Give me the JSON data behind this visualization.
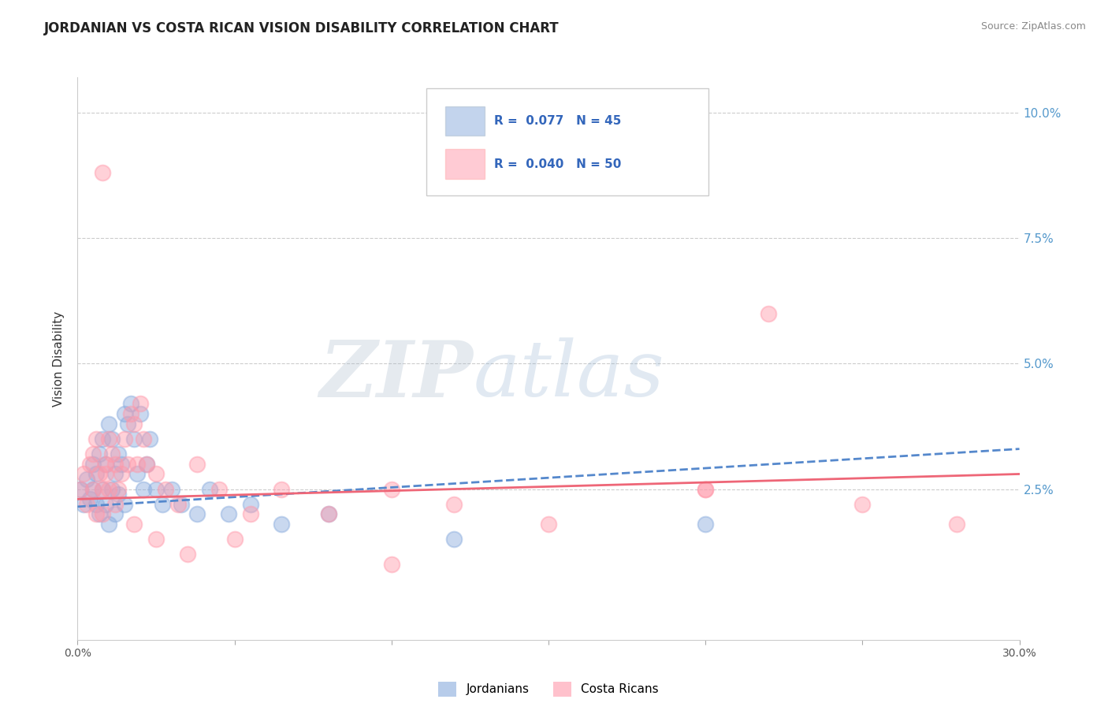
{
  "title": "JORDANIAN VS COSTA RICAN VISION DISABILITY CORRELATION CHART",
  "source": "Source: ZipAtlas.com",
  "ylabel": "Vision Disability",
  "xlim": [
    0.0,
    0.3
  ],
  "ylim": [
    -0.005,
    0.107
  ],
  "xticks": [
    0.0,
    0.05,
    0.1,
    0.15,
    0.2,
    0.25,
    0.3
  ],
  "xticklabels": [
    "0.0%",
    "",
    "",
    "",
    "",
    "",
    "30.0%"
  ],
  "yticks": [
    0.025,
    0.05,
    0.075,
    0.1
  ],
  "yticklabels": [
    "2.5%",
    "5.0%",
    "7.5%",
    "10.0%"
  ],
  "blue_color": "#88AADD",
  "pink_color": "#FF99AA",
  "blue_label": "Jordanians",
  "pink_label": "Costa Ricans",
  "watermark_zip": "ZIP",
  "watermark_atlas": "atlas",
  "background_color": "#ffffff",
  "grid_color": "#cccccc",
  "blue_scatter_x": [
    0.001,
    0.002,
    0.003,
    0.004,
    0.005,
    0.005,
    0.006,
    0.006,
    0.007,
    0.007,
    0.008,
    0.008,
    0.009,
    0.009,
    0.01,
    0.01,
    0.011,
    0.011,
    0.012,
    0.012,
    0.013,
    0.013,
    0.014,
    0.015,
    0.015,
    0.016,
    0.017,
    0.018,
    0.019,
    0.02,
    0.021,
    0.022,
    0.023,
    0.025,
    0.027,
    0.03,
    0.033,
    0.038,
    0.042,
    0.048,
    0.055,
    0.065,
    0.08,
    0.12,
    0.2
  ],
  "blue_scatter_y": [
    0.025,
    0.022,
    0.027,
    0.023,
    0.025,
    0.03,
    0.028,
    0.022,
    0.032,
    0.02,
    0.035,
    0.025,
    0.03,
    0.022,
    0.038,
    0.018,
    0.035,
    0.025,
    0.028,
    0.02,
    0.032,
    0.024,
    0.03,
    0.04,
    0.022,
    0.038,
    0.042,
    0.035,
    0.028,
    0.04,
    0.025,
    0.03,
    0.035,
    0.025,
    0.022,
    0.025,
    0.022,
    0.02,
    0.025,
    0.02,
    0.022,
    0.018,
    0.02,
    0.015,
    0.018
  ],
  "pink_scatter_x": [
    0.001,
    0.002,
    0.003,
    0.004,
    0.005,
    0.005,
    0.006,
    0.007,
    0.008,
    0.008,
    0.009,
    0.01,
    0.01,
    0.011,
    0.012,
    0.013,
    0.014,
    0.015,
    0.016,
    0.017,
    0.018,
    0.019,
    0.02,
    0.021,
    0.022,
    0.025,
    0.028,
    0.032,
    0.038,
    0.045,
    0.055,
    0.065,
    0.08,
    0.1,
    0.12,
    0.15,
    0.2,
    0.22,
    0.25,
    0.28,
    0.006,
    0.009,
    0.012,
    0.018,
    0.025,
    0.035,
    0.05,
    0.1,
    0.2,
    0.008
  ],
  "pink_scatter_y": [
    0.025,
    0.028,
    0.022,
    0.03,
    0.025,
    0.032,
    0.02,
    0.028,
    0.088,
    0.025,
    0.03,
    0.035,
    0.025,
    0.032,
    0.03,
    0.025,
    0.028,
    0.035,
    0.03,
    0.04,
    0.038,
    0.03,
    0.042,
    0.035,
    0.03,
    0.028,
    0.025,
    0.022,
    0.03,
    0.025,
    0.02,
    0.025,
    0.02,
    0.025,
    0.022,
    0.018,
    0.025,
    0.06,
    0.022,
    0.018,
    0.035,
    0.028,
    0.022,
    0.018,
    0.015,
    0.012,
    0.015,
    0.01,
    0.025,
    0.02
  ]
}
